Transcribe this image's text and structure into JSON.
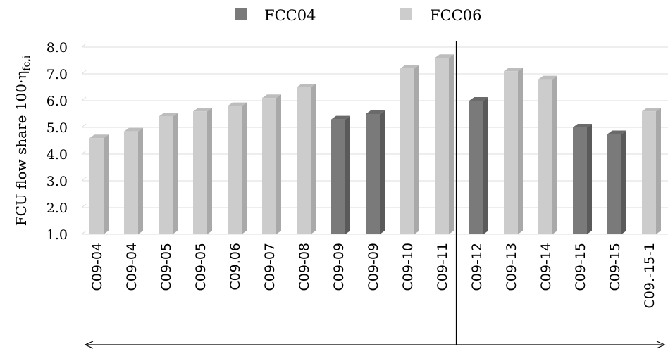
{
  "chart_data": {
    "type": "bar",
    "title": "",
    "xlabel": "",
    "ylabel": "FCU flow share 100·η",
    "ylabel_subscript": "fc,i",
    "ylim": [
      1.0,
      8.0
    ],
    "yticks": [
      "1.0",
      "2.0",
      "3.0",
      "4.0",
      "5.0",
      "6.0",
      "7.0",
      "8.0"
    ],
    "grid": true,
    "legend_position": "top-center",
    "legend": [
      {
        "name": "FCC04",
        "color": "#7a7a7a"
      },
      {
        "name": "FCC06",
        "color": "#cccccc"
      }
    ],
    "categories": [
      "C09-04",
      "C09-04",
      "C09-05",
      "C09-05",
      "C09.06",
      "C09-07",
      "C09-08",
      "C09-09",
      "C09-09",
      "C09-10",
      "C09-11",
      "C09-12",
      "C09-13",
      "C09-14",
      "C09-15",
      "C09-15",
      "C09.-15-1"
    ],
    "values": [
      4.6,
      4.85,
      5.4,
      5.6,
      5.8,
      6.1,
      6.5,
      5.3,
      5.5,
      7.2,
      7.6,
      6.0,
      7.1,
      6.8,
      5.0,
      4.75,
      5.6
    ],
    "series_of_bar": [
      "FCC06",
      "FCC06",
      "FCC06",
      "FCC06",
      "FCC06",
      "FCC06",
      "FCC06",
      "FCC04",
      "FCC04",
      "FCC06",
      "FCC06",
      "FCC04",
      "FCC06",
      "FCC06",
      "FCC04",
      "FCC04",
      "FCC06"
    ],
    "divider_after_index": 10,
    "bottom_arrow": true
  }
}
